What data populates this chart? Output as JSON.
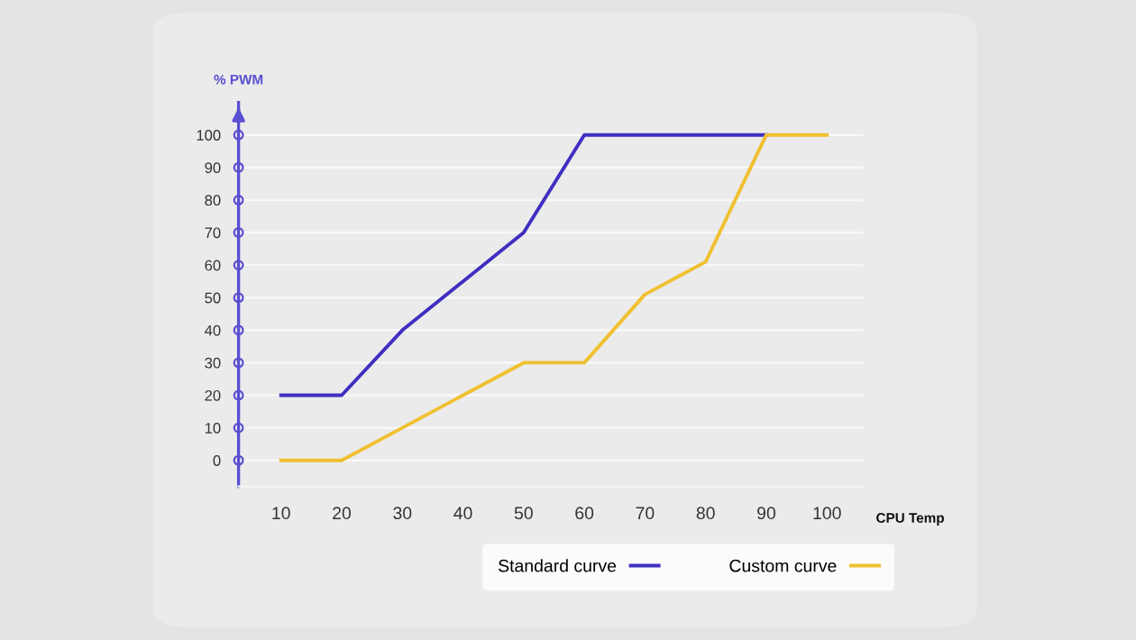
{
  "chart_data": {
    "type": "line",
    "xlabel": "CPU Temp",
    "ylabel": "% PWM",
    "xlim": [
      3,
      106
    ],
    "xticks": [
      10,
      20,
      30,
      40,
      50,
      60,
      70,
      80,
      90,
      100
    ],
    "ylim": [
      -8,
      110
    ],
    "yticks": [
      0,
      10,
      20,
      30,
      40,
      50,
      60,
      70,
      80,
      90,
      100
    ],
    "grid": "y",
    "legend": "bottom",
    "marker": "none",
    "line_style": "solid",
    "series": [
      {
        "name": "Standard curve",
        "color": "#3f2fc0",
        "x": [
          10,
          20,
          30,
          40,
          50,
          60,
          90
        ],
        "values": [
          20,
          20,
          40,
          55,
          70,
          100,
          100
        ]
      },
      {
        "name": "Custom curve",
        "color": "#f0c030",
        "x": [
          10,
          20,
          30,
          40,
          50,
          60,
          70,
          80,
          90,
          100
        ],
        "values": [
          0,
          0,
          10,
          20,
          30,
          30,
          51,
          61,
          100,
          100
        ]
      }
    ]
  }
}
